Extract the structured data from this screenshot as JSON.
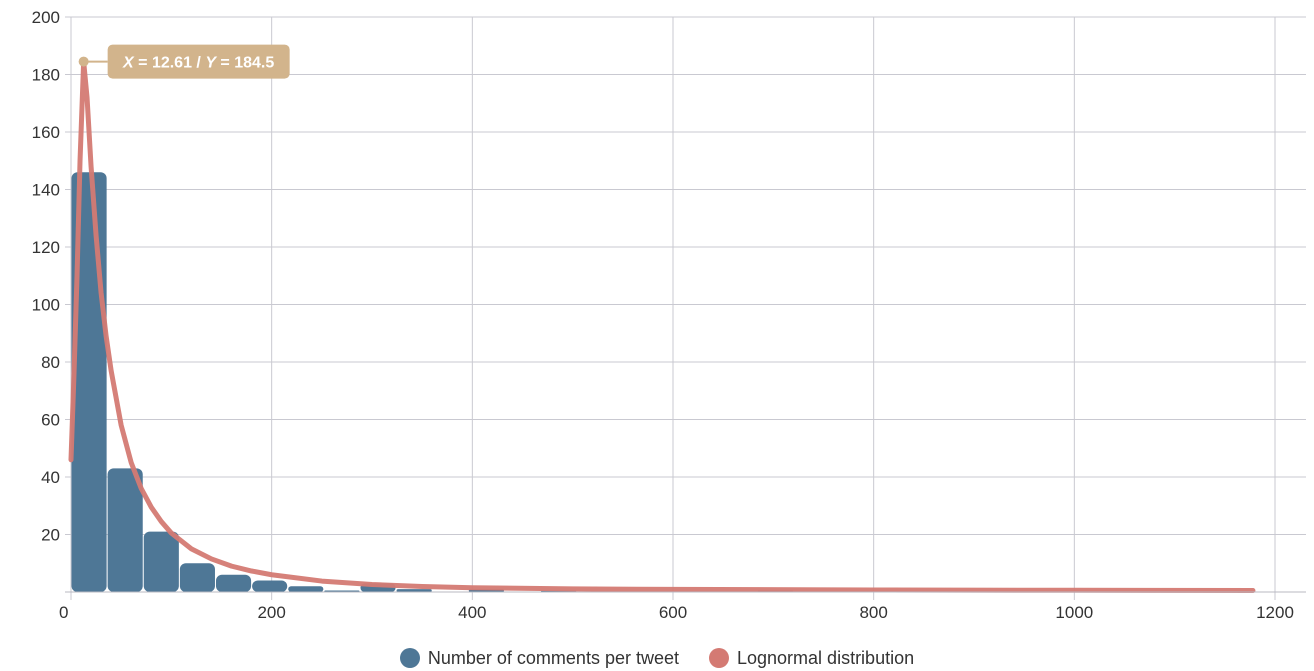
{
  "chart_data": {
    "type": "bar",
    "title": "",
    "xlabel": "",
    "ylabel": "",
    "xlim": [
      0,
      1200
    ],
    "ylim": [
      0,
      200
    ],
    "x_ticks": [
      0,
      200,
      400,
      600,
      800,
      1000,
      1200
    ],
    "y_ticks": [
      20,
      40,
      60,
      80,
      100,
      120,
      140,
      160,
      180,
      200
    ],
    "grid": true,
    "legend_position": "bottom-center",
    "series": [
      {
        "name": "Number of comments per tweet",
        "type": "histogram",
        "color": "#4e7796",
        "bin_width": 36,
        "bins": [
          {
            "x0": 0,
            "x1": 36,
            "count": 146
          },
          {
            "x0": 36,
            "x1": 72,
            "count": 43
          },
          {
            "x0": 72,
            "x1": 108,
            "count": 21
          },
          {
            "x0": 108,
            "x1": 144,
            "count": 10
          },
          {
            "x0": 144,
            "x1": 180,
            "count": 6
          },
          {
            "x0": 180,
            "x1": 216,
            "count": 4
          },
          {
            "x0": 216,
            "x1": 252,
            "count": 2
          },
          {
            "x0": 252,
            "x1": 288,
            "count": 0.5
          },
          {
            "x0": 288,
            "x1": 324,
            "count": 3
          },
          {
            "x0": 324,
            "x1": 360,
            "count": 1
          },
          {
            "x0": 396,
            "x1": 432,
            "count": 1
          },
          {
            "x0": 468,
            "x1": 504,
            "count": 0.5
          },
          {
            "x0": 684,
            "x1": 720,
            "count": 0.5
          }
        ]
      },
      {
        "name": "Lognormal distribution",
        "type": "line",
        "color": "#d47a73",
        "points": [
          [
            0,
            46
          ],
          [
            3,
            76
          ],
          [
            6,
            110
          ],
          [
            9,
            150
          ],
          [
            12.61,
            184.5
          ],
          [
            16,
            172
          ],
          [
            20,
            148
          ],
          [
            25,
            124
          ],
          [
            30,
            104
          ],
          [
            35,
            89
          ],
          [
            40,
            77
          ],
          [
            50,
            58
          ],
          [
            60,
            45
          ],
          [
            70,
            36
          ],
          [
            80,
            29.5
          ],
          [
            90,
            24.5
          ],
          [
            100,
            20.5
          ],
          [
            120,
            15
          ],
          [
            140,
            11.5
          ],
          [
            160,
            9
          ],
          [
            180,
            7.3
          ],
          [
            200,
            6
          ],
          [
            250,
            3.8
          ],
          [
            300,
            2.6
          ],
          [
            350,
            1.9
          ],
          [
            400,
            1.5
          ],
          [
            500,
            1.1
          ],
          [
            600,
            0.9
          ],
          [
            800,
            0.7
          ],
          [
            1000,
            0.6
          ],
          [
            1178,
            0.5
          ]
        ]
      }
    ],
    "annotation": {
      "x": 12.61,
      "y": 184.5,
      "label_x_name": "X",
      "label_x_value": "12.61",
      "label_y_name": "Y",
      "label_y_value": "184.5",
      "color": "#d2b48c"
    }
  },
  "legend": [
    {
      "label": "Number of comments per tweet",
      "color": "#4e7796"
    },
    {
      "label": "Lognormal distribution",
      "color": "#d47a73"
    }
  ]
}
